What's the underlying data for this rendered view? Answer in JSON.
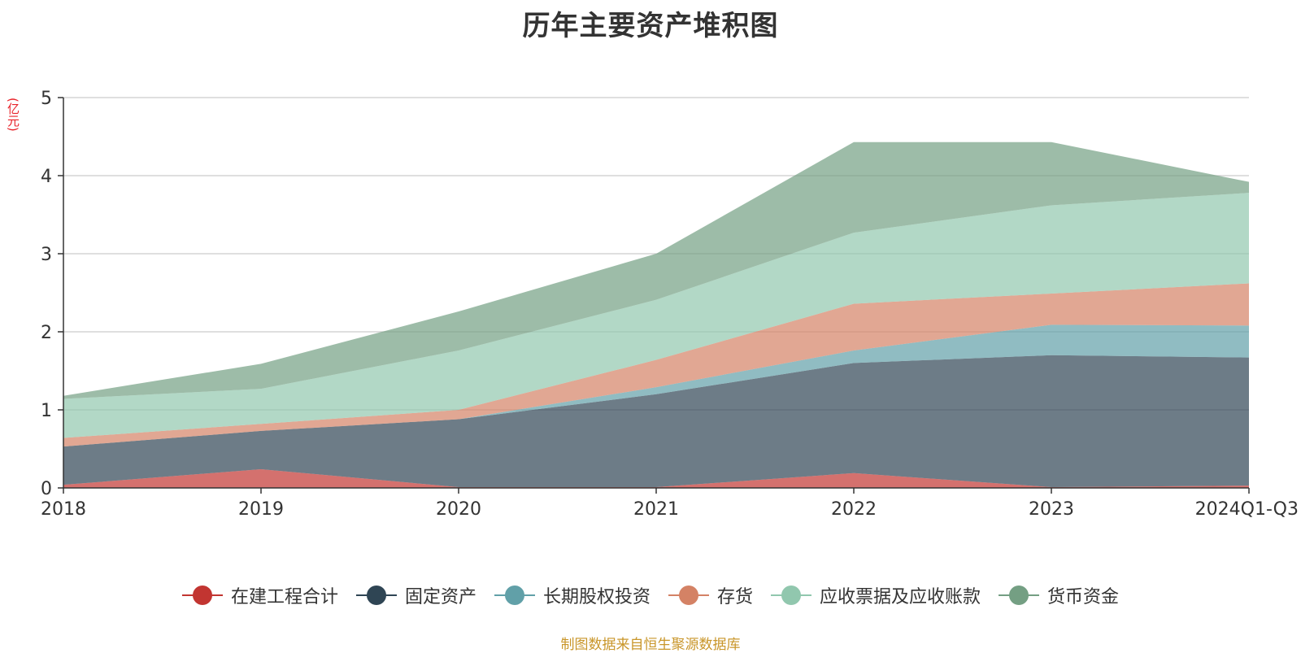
{
  "title": "历年主要资产堆积图",
  "unit": "(亿元)",
  "source": "制图数据来自恒生聚源数据库",
  "chart_data": {
    "type": "area",
    "stacked": true,
    "categories": [
      "2018",
      "2019",
      "2020",
      "2021",
      "2022",
      "2023",
      "2024Q1-Q3"
    ],
    "ylim": [
      0,
      5
    ],
    "yticks": [
      0,
      1,
      2,
      3,
      4,
      5
    ],
    "grid": true,
    "legend_position": "bottom",
    "series": [
      {
        "name": "在建工程合计",
        "color": "#c23531",
        "values": [
          0.04,
          0.24,
          0.01,
          0.01,
          0.19,
          0.01,
          0.03
        ]
      },
      {
        "name": "固定资产",
        "color": "#2f4554",
        "values": [
          0.49,
          0.49,
          0.87,
          1.19,
          1.41,
          1.69,
          1.64
        ]
      },
      {
        "name": "长期股权投资",
        "color": "#61a0a8",
        "values": [
          0.0,
          0.0,
          0.0,
          0.09,
          0.16,
          0.39,
          0.41
        ]
      },
      {
        "name": "存货",
        "color": "#d48265",
        "values": [
          0.11,
          0.09,
          0.12,
          0.35,
          0.6,
          0.4,
          0.54
        ]
      },
      {
        "name": "应收票据及应收账款",
        "color": "#91c7ae",
        "values": [
          0.5,
          0.45,
          0.76,
          0.77,
          0.91,
          1.13,
          1.16
        ]
      },
      {
        "name": "货币资金",
        "color": "#749f83",
        "values": [
          0.04,
          0.32,
          0.5,
          0.59,
          1.16,
          0.81,
          0.14
        ]
      }
    ]
  }
}
